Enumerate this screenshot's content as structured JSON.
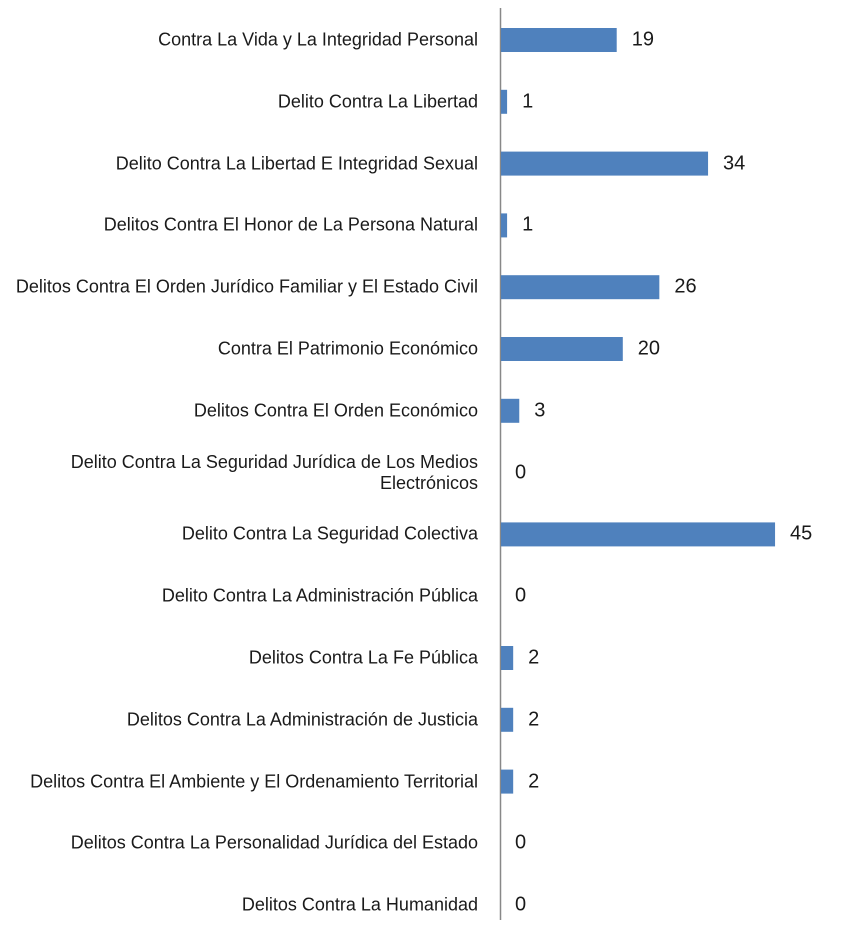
{
  "chart_data": {
    "type": "bar",
    "orientation": "horizontal",
    "color": "#4f81bd",
    "categories": [
      "Contra La Vida y La Integridad Personal",
      "Delito Contra La Libertad",
      "Delito Contra La Libertad E Integridad Sexual",
      "Delitos Contra El Honor de La Persona Natural",
      "Delitos Contra El Orden Jurídico Familiar y El Estado Civil",
      "Contra El Patrimonio Económico",
      "Delitos Contra El Orden Económico",
      "Delito Contra La Seguridad Jurídica de Los Medios Electrónicos",
      "Delito Contra La Seguridad Colectiva",
      "Delito Contra La Administración Pública",
      "Delitos Contra La Fe Pública",
      "Delitos Contra La Administración de Justicia",
      "Delitos Contra El Ambiente y El Ordenamiento Territorial",
      "Delitos Contra La Personalidad Jurídica del Estado",
      "Delitos Contra La Humanidad"
    ],
    "values": [
      19,
      1,
      34,
      1,
      26,
      20,
      3,
      0,
      45,
      0,
      2,
      2,
      2,
      0,
      0
    ]
  }
}
